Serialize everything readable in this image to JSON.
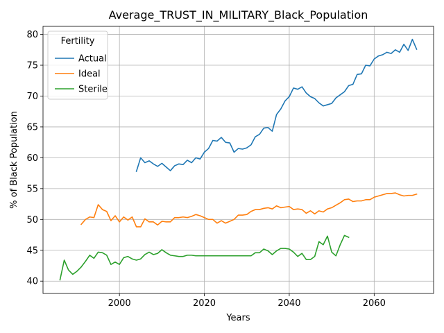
{
  "chart_data": {
    "type": "line",
    "title": "Average_TRUST_IN_MILITARY_Black_Population",
    "xlabel": "Years",
    "ylabel": "% of Black Population",
    "xlim": [
      1982,
      2074
    ],
    "ylim": [
      38,
      81.3
    ],
    "xticks": [
      2000,
      2020,
      2040,
      2060
    ],
    "yticks": [
      40,
      45,
      50,
      55,
      60,
      65,
      70,
      75,
      80
    ],
    "grid": true,
    "legend": {
      "title": "Fertility",
      "position": "top-left"
    },
    "colors": {
      "Actual": "#1f77b4",
      "Ideal": "#ff7f0e",
      "Sterile": "#2ca02c"
    },
    "series": [
      {
        "name": "Actual",
        "points": [
          [
            2004,
            57.8
          ],
          [
            2005,
            60.0
          ],
          [
            2006,
            59.2
          ],
          [
            2007,
            59.5
          ],
          [
            2008,
            59.0
          ],
          [
            2009,
            58.6
          ],
          [
            2010,
            59.1
          ],
          [
            2011,
            58.5
          ],
          [
            2012,
            57.9
          ],
          [
            2013,
            58.7
          ],
          [
            2014,
            59.0
          ],
          [
            2015,
            58.9
          ],
          [
            2016,
            59.6
          ],
          [
            2017,
            59.2
          ],
          [
            2018,
            60.0
          ],
          [
            2019,
            59.8
          ],
          [
            2020,
            60.9
          ],
          [
            2021,
            61.5
          ],
          [
            2022,
            62.8
          ],
          [
            2023,
            62.7
          ],
          [
            2024,
            63.3
          ],
          [
            2025,
            62.5
          ],
          [
            2026,
            62.4
          ],
          [
            2027,
            60.9
          ],
          [
            2028,
            61.5
          ],
          [
            2029,
            61.4
          ],
          [
            2030,
            61.6
          ],
          [
            2031,
            62.1
          ],
          [
            2032,
            63.4
          ],
          [
            2033,
            63.8
          ],
          [
            2034,
            64.8
          ],
          [
            2035,
            64.9
          ],
          [
            2036,
            64.3
          ],
          [
            2037,
            67.0
          ],
          [
            2038,
            67.9
          ],
          [
            2039,
            69.2
          ],
          [
            2040,
            69.9
          ],
          [
            2041,
            71.3
          ],
          [
            2042,
            71.1
          ],
          [
            2043,
            71.5
          ],
          [
            2044,
            70.5
          ],
          [
            2045,
            69.9
          ],
          [
            2046,
            69.6
          ],
          [
            2047,
            68.9
          ],
          [
            2048,
            68.4
          ],
          [
            2049,
            68.6
          ],
          [
            2050,
            68.8
          ],
          [
            2051,
            69.7
          ],
          [
            2052,
            70.2
          ],
          [
            2053,
            70.7
          ],
          [
            2054,
            71.7
          ],
          [
            2055,
            71.9
          ],
          [
            2056,
            73.5
          ],
          [
            2057,
            73.6
          ],
          [
            2058,
            75.0
          ],
          [
            2059,
            74.9
          ],
          [
            2060,
            76.0
          ],
          [
            2061,
            76.5
          ],
          [
            2062,
            76.7
          ],
          [
            2063,
            77.1
          ],
          [
            2064,
            76.9
          ],
          [
            2065,
            77.5
          ],
          [
            2066,
            77.1
          ],
          [
            2067,
            78.4
          ],
          [
            2068,
            77.4
          ],
          [
            2069,
            79.2
          ],
          [
            2070,
            77.6
          ]
        ]
      },
      {
        "name": "Ideal",
        "points": [
          [
            1991,
            49.2
          ],
          [
            1992,
            50.0
          ],
          [
            1993,
            50.4
          ],
          [
            1994,
            50.3
          ],
          [
            1995,
            52.4
          ],
          [
            1996,
            51.6
          ],
          [
            1997,
            51.3
          ],
          [
            1998,
            49.8
          ],
          [
            1999,
            50.6
          ],
          [
            2000,
            49.6
          ],
          [
            2001,
            50.4
          ],
          [
            2002,
            49.9
          ],
          [
            2003,
            50.4
          ],
          [
            2004,
            48.8
          ],
          [
            2005,
            48.8
          ],
          [
            2006,
            50.1
          ],
          [
            2007,
            49.6
          ],
          [
            2008,
            49.6
          ],
          [
            2009,
            49.1
          ],
          [
            2010,
            49.7
          ],
          [
            2011,
            49.6
          ],
          [
            2012,
            49.6
          ],
          [
            2013,
            50.3
          ],
          [
            2014,
            50.3
          ],
          [
            2015,
            50.4
          ],
          [
            2016,
            50.3
          ],
          [
            2017,
            50.5
          ],
          [
            2018,
            50.8
          ],
          [
            2019,
            50.6
          ],
          [
            2020,
            50.3
          ],
          [
            2021,
            50.0
          ],
          [
            2022,
            50.0
          ],
          [
            2023,
            49.4
          ],
          [
            2024,
            49.8
          ],
          [
            2025,
            49.4
          ],
          [
            2026,
            49.7
          ],
          [
            2027,
            50.0
          ],
          [
            2028,
            50.7
          ],
          [
            2029,
            50.7
          ],
          [
            2030,
            50.8
          ],
          [
            2031,
            51.3
          ],
          [
            2032,
            51.6
          ],
          [
            2033,
            51.6
          ],
          [
            2034,
            51.8
          ],
          [
            2035,
            51.9
          ],
          [
            2036,
            51.7
          ],
          [
            2037,
            52.2
          ],
          [
            2038,
            51.9
          ],
          [
            2039,
            52.0
          ],
          [
            2040,
            52.1
          ],
          [
            2041,
            51.6
          ],
          [
            2042,
            51.7
          ],
          [
            2043,
            51.6
          ],
          [
            2044,
            51.0
          ],
          [
            2045,
            51.4
          ],
          [
            2046,
            50.9
          ],
          [
            2047,
            51.4
          ],
          [
            2048,
            51.2
          ],
          [
            2049,
            51.7
          ],
          [
            2050,
            51.9
          ],
          [
            2051,
            52.3
          ],
          [
            2052,
            52.7
          ],
          [
            2053,
            53.2
          ],
          [
            2054,
            53.3
          ],
          [
            2055,
            52.9
          ],
          [
            2056,
            53.0
          ],
          [
            2057,
            53.0
          ],
          [
            2058,
            53.2
          ],
          [
            2059,
            53.2
          ],
          [
            2060,
            53.6
          ],
          [
            2061,
            53.8
          ],
          [
            2062,
            54.0
          ],
          [
            2063,
            54.2
          ],
          [
            2064,
            54.2
          ],
          [
            2065,
            54.3
          ],
          [
            2066,
            54.0
          ],
          [
            2067,
            53.8
          ],
          [
            2068,
            53.9
          ],
          [
            2069,
            53.9
          ],
          [
            2070,
            54.1
          ]
        ]
      },
      {
        "name": "Sterile",
        "points": [
          [
            1986,
            40.2
          ],
          [
            1987,
            43.4
          ],
          [
            1988,
            41.8
          ],
          [
            1989,
            41.1
          ],
          [
            1990,
            41.6
          ],
          [
            1991,
            42.3
          ],
          [
            1992,
            43.2
          ],
          [
            1993,
            44.2
          ],
          [
            1994,
            43.7
          ],
          [
            1995,
            44.7
          ],
          [
            1996,
            44.6
          ],
          [
            1997,
            44.2
          ],
          [
            1998,
            42.7
          ],
          [
            1999,
            43.1
          ],
          [
            2000,
            42.7
          ],
          [
            2001,
            43.8
          ],
          [
            2002,
            44.0
          ],
          [
            2003,
            43.6
          ],
          [
            2004,
            43.4
          ],
          [
            2005,
            43.6
          ],
          [
            2006,
            44.3
          ],
          [
            2007,
            44.7
          ],
          [
            2008,
            44.3
          ],
          [
            2009,
            44.5
          ],
          [
            2010,
            45.1
          ],
          [
            2011,
            44.6
          ],
          [
            2012,
            44.2
          ],
          [
            2013,
            44.1
          ],
          [
            2014,
            44.0
          ],
          [
            2015,
            44.0
          ],
          [
            2016,
            44.2
          ],
          [
            2017,
            44.2
          ],
          [
            2018,
            44.1
          ],
          [
            2019,
            44.1
          ],
          [
            2020,
            44.1
          ],
          [
            2021,
            44.1
          ],
          [
            2022,
            44.1
          ],
          [
            2023,
            44.1
          ],
          [
            2024,
            44.1
          ],
          [
            2025,
            44.1
          ],
          [
            2026,
            44.1
          ],
          [
            2027,
            44.1
          ],
          [
            2028,
            44.1
          ],
          [
            2029,
            44.1
          ],
          [
            2030,
            44.1
          ],
          [
            2031,
            44.1
          ],
          [
            2032,
            44.6
          ],
          [
            2033,
            44.6
          ],
          [
            2034,
            45.2
          ],
          [
            2035,
            44.9
          ],
          [
            2036,
            44.3
          ],
          [
            2037,
            44.9
          ],
          [
            2038,
            45.3
          ],
          [
            2039,
            45.3
          ],
          [
            2040,
            45.2
          ],
          [
            2041,
            44.7
          ],
          [
            2042,
            44.0
          ],
          [
            2043,
            44.5
          ],
          [
            2044,
            43.5
          ],
          [
            2045,
            43.5
          ],
          [
            2046,
            44.0
          ],
          [
            2047,
            46.4
          ],
          [
            2048,
            45.9
          ],
          [
            2049,
            47.3
          ],
          [
            2050,
            44.7
          ],
          [
            2051,
            44.1
          ],
          [
            2052,
            45.9
          ],
          [
            2053,
            47.4
          ],
          [
            2054,
            47.1
          ]
        ]
      }
    ]
  }
}
